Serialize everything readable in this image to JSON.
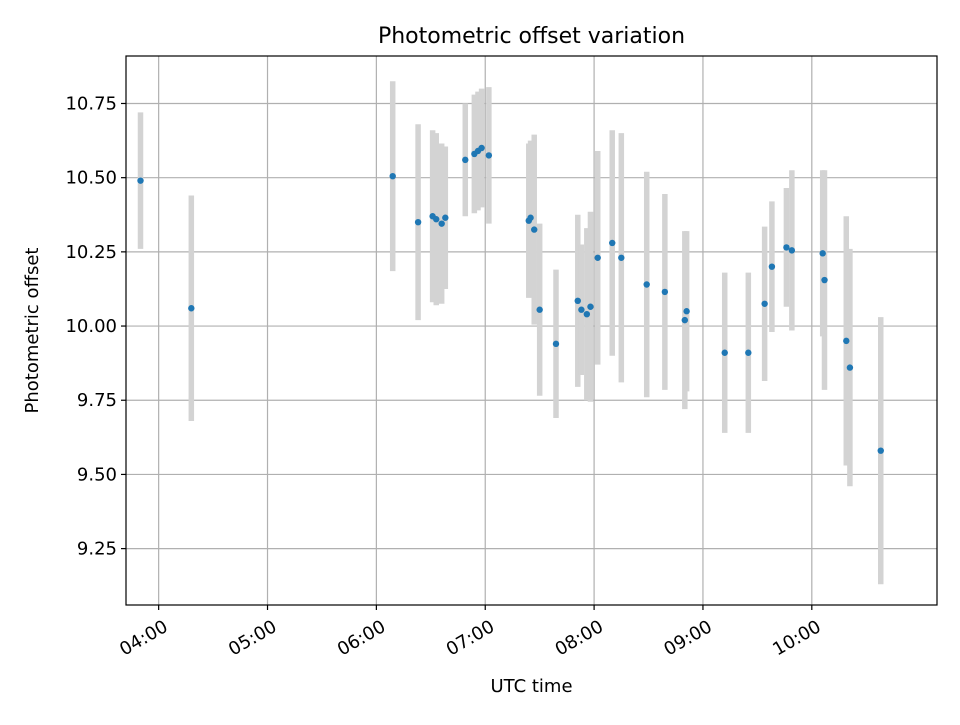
{
  "chart_data": {
    "type": "scatter",
    "title": "Photometric offset variation",
    "xlabel": "UTC time",
    "ylabel": "Photometric offset",
    "xlim": [
      "03:42",
      "11:09"
    ],
    "ylim": [
      9.06,
      10.91
    ],
    "x_ticks": [
      "04:00",
      "05:00",
      "06:00",
      "07:00",
      "08:00",
      "09:00",
      "10:00"
    ],
    "y_ticks": [
      9.25,
      9.5,
      9.75,
      10.0,
      10.25,
      10.5,
      10.75
    ],
    "y_tick_labels": [
      "9.25",
      "9.50",
      "9.75",
      "10.00",
      "10.25",
      "10.50",
      "10.75"
    ],
    "grid": true,
    "colors": {
      "point": "#1f77b4",
      "errorbar": "#d3d3d3",
      "grid": "#b0b0b0"
    },
    "points": [
      {
        "x": "03:50",
        "y": 10.49,
        "err": 0.23
      },
      {
        "x": "04:18",
        "y": 10.06,
        "err": 0.38
      },
      {
        "x": "06:09",
        "y": 10.505,
        "err": 0.32
      },
      {
        "x": "06:23",
        "y": 10.35,
        "err": 0.33
      },
      {
        "x": "06:31",
        "y": 10.37,
        "err": 0.29
      },
      {
        "x": "06:33",
        "y": 10.36,
        "err": 0.29
      },
      {
        "x": "06:36",
        "y": 10.345,
        "err": 0.27
      },
      {
        "x": "06:38",
        "y": 10.365,
        "err": 0.24
      },
      {
        "x": "06:49",
        "y": 10.56,
        "err": 0.19
      },
      {
        "x": "06:54",
        "y": 10.58,
        "err": 0.2
      },
      {
        "x": "06:56",
        "y": 10.59,
        "err": 0.2
      },
      {
        "x": "06:58",
        "y": 10.6,
        "err": 0.2
      },
      {
        "x": "07:02",
        "y": 10.575,
        "err": 0.23
      },
      {
        "x": "07:24",
        "y": 10.355,
        "err": 0.26
      },
      {
        "x": "07:25",
        "y": 10.365,
        "err": 0.26
      },
      {
        "x": "07:27",
        "y": 10.325,
        "err": 0.32
      },
      {
        "x": "07:30",
        "y": 10.055,
        "err": 0.29
      },
      {
        "x": "07:39",
        "y": 9.94,
        "err": 0.25
      },
      {
        "x": "07:51",
        "y": 10.085,
        "err": 0.29
      },
      {
        "x": "07:53",
        "y": 10.055,
        "err": 0.22
      },
      {
        "x": "07:56",
        "y": 10.04,
        "err": 0.29
      },
      {
        "x": "07:58",
        "y": 10.065,
        "err": 0.32
      },
      {
        "x": "08:02",
        "y": 10.23,
        "err": 0.36
      },
      {
        "x": "08:10",
        "y": 10.28,
        "err": 0.38
      },
      {
        "x": "08:15",
        "y": 10.23,
        "err": 0.42
      },
      {
        "x": "08:29",
        "y": 10.14,
        "err": 0.38
      },
      {
        "x": "08:39",
        "y": 10.115,
        "err": 0.33
      },
      {
        "x": "08:50",
        "y": 10.02,
        "err": 0.3
      },
      {
        "x": "08:51",
        "y": 10.05,
        "err": 0.27
      },
      {
        "x": "09:12",
        "y": 9.91,
        "err": 0.27
      },
      {
        "x": "09:25",
        "y": 9.91,
        "err": 0.27
      },
      {
        "x": "09:34",
        "y": 10.075,
        "err": 0.26
      },
      {
        "x": "09:38",
        "y": 10.2,
        "err": 0.22
      },
      {
        "x": "09:46",
        "y": 10.265,
        "err": 0.2
      },
      {
        "x": "09:49",
        "y": 10.255,
        "err": 0.27
      },
      {
        "x": "10:06",
        "y": 10.245,
        "err": 0.28
      },
      {
        "x": "10:07",
        "y": 10.155,
        "err": 0.37
      },
      {
        "x": "10:19",
        "y": 9.95,
        "err": 0.42
      },
      {
        "x": "10:21",
        "y": 9.86,
        "err": 0.4
      },
      {
        "x": "10:38",
        "y": 9.58,
        "err": 0.45
      }
    ]
  }
}
